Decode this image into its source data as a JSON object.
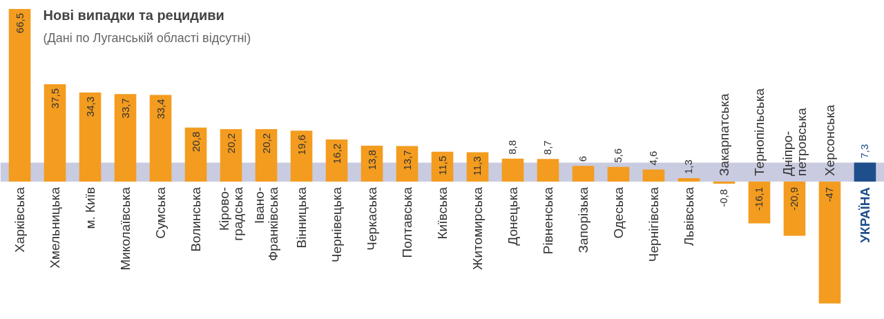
{
  "chart_data": {
    "type": "bar",
    "title": "Нові випадки та рецидиви",
    "subtitle": "(Дані по Луганській області відсутні)",
    "categories": [
      "Харківська",
      "Хмельницька",
      "м. Київ",
      "Миколаївська",
      "Сумська",
      "Волинська",
      "Кірово-\nградська",
      "Івано-\nФранківська",
      "Вінницька",
      "Чернівецька",
      "Черкаська",
      "Полтавська",
      "Київська",
      "Житомирська",
      "Донецька",
      "Рівненська",
      "Запорізька",
      "Одеська",
      "Чернігівська",
      "Львівська",
      "Закарпатська",
      "Тернопільська",
      "Дніпро-\nпетровська",
      "Херсонська",
      "УКРАЇНА"
    ],
    "values": [
      66.5,
      37.5,
      34.3,
      33.7,
      33.4,
      20.8,
      20.2,
      20.2,
      19.6,
      16.2,
      13.8,
      13.7,
      11.5,
      11.3,
      8.8,
      8.7,
      6,
      5.6,
      4.6,
      1.3,
      -0.8,
      -16.1,
      -20.9,
      -47,
      7.3
    ],
    "value_labels": [
      "66,5",
      "37,5",
      "34,3",
      "33,7",
      "33,4",
      "20,8",
      "20,2",
      "20,2",
      "19,6",
      "16,2",
      "13,8",
      "13,7",
      "11,5",
      "11,3",
      "8,8",
      "8,7",
      "6",
      "5,6",
      "4,6",
      "1,3",
      "-0,8",
      "-16,1",
      "-20,9",
      "-47",
      "7,3"
    ],
    "colors": [
      "#f39c1f",
      "#f39c1f",
      "#f39c1f",
      "#f39c1f",
      "#f39c1f",
      "#f39c1f",
      "#f39c1f",
      "#f39c1f",
      "#f39c1f",
      "#f39c1f",
      "#f39c1f",
      "#f39c1f",
      "#f39c1f",
      "#f39c1f",
      "#f39c1f",
      "#f39c1f",
      "#f39c1f",
      "#f39c1f",
      "#f39c1f",
      "#f39c1f",
      "#f39c1f",
      "#f39c1f",
      "#f39c1f",
      "#f39c1f",
      "#1f4e8c"
    ],
    "bands": [
      {
        "axis": "y",
        "from": 0,
        "to": 7.3,
        "color": "#c9cbe0"
      }
    ]
  }
}
